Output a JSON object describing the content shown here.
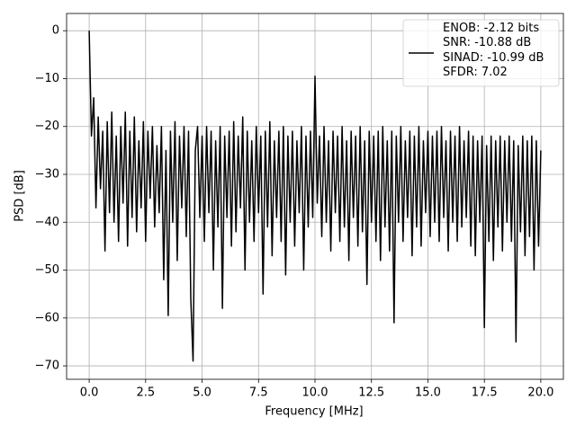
{
  "chart_data": {
    "type": "line",
    "xlabel": "Frequency [MHz]",
    "ylabel": "PSD [dB]",
    "xlim": [
      -1.0,
      21.0
    ],
    "ylim": [
      -72.8,
      3.6
    ],
    "xticks": [
      {
        "value": 0,
        "label": "0.0"
      },
      2.5,
      {
        "value": 5,
        "label": "5.0"
      },
      7.5,
      {
        "value": 10,
        "label": "10.0"
      },
      12.5,
      {
        "value": 15,
        "label": "15.0"
      },
      17.5,
      {
        "value": 20,
        "label": "20.0"
      }
    ],
    "yticks": [
      0,
      {
        "value": -10,
        "label": "−10"
      },
      {
        "value": -20,
        "label": "−20"
      },
      {
        "value": -30,
        "label": "−30"
      },
      {
        "value": -40,
        "label": "−40"
      },
      {
        "value": -50,
        "label": "−50"
      },
      {
        "value": -60,
        "label": "−60"
      },
      {
        "value": -70,
        "label": "−70"
      }
    ],
    "grid": true,
    "legend": "upper right",
    "x": [
      0,
      0.1,
      0.2,
      0.3,
      0.4,
      0.5,
      0.6,
      0.7,
      0.8,
      0.9,
      1,
      1.1,
      1.2,
      1.3,
      1.4,
      1.5,
      1.6,
      1.7,
      1.8,
      1.9,
      2,
      2.1,
      2.2,
      2.3,
      2.4,
      2.5,
      2.6,
      2.7,
      2.8,
      2.9,
      3,
      3.1,
      3.2,
      3.3,
      3.4,
      3.5,
      3.6,
      3.7,
      3.8,
      3.9,
      4,
      4.1,
      4.2,
      4.3,
      4.4,
      4.5,
      4.6,
      4.7,
      4.8,
      4.9,
      5,
      5.1,
      5.2,
      5.3,
      5.4,
      5.5,
      5.6,
      5.7,
      5.8,
      5.9,
      6,
      6.1,
      6.2,
      6.3,
      6.4,
      6.5,
      6.6,
      6.7,
      6.8,
      6.9,
      7,
      7.1,
      7.2,
      7.3,
      7.4,
      7.5,
      7.6,
      7.7,
      7.8,
      7.9,
      8,
      8.1,
      8.2,
      8.3,
      8.4,
      8.5,
      8.6,
      8.7,
      8.8,
      8.9,
      9,
      9.1,
      9.2,
      9.3,
      9.4,
      9.5,
      9.6,
      9.7,
      9.8,
      9.9,
      10,
      10.1,
      10.2,
      10.3,
      10.4,
      10.5,
      10.6,
      10.7,
      10.8,
      10.9,
      11,
      11.1,
      11.2,
      11.3,
      11.4,
      11.5,
      11.6,
      11.7,
      11.8,
      11.9,
      12,
      12.1,
      12.2,
      12.3,
      12.4,
      12.5,
      12.6,
      12.7,
      12.8,
      12.9,
      13,
      13.1,
      13.2,
      13.3,
      13.4,
      13.5,
      13.6,
      13.7,
      13.8,
      13.9,
      14,
      14.1,
      14.2,
      14.3,
      14.4,
      14.5,
      14.6,
      14.7,
      14.8,
      14.9,
      15,
      15.1,
      15.2,
      15.3,
      15.4,
      15.5,
      15.6,
      15.7,
      15.8,
      15.9,
      16,
      16.1,
      16.2,
      16.3,
      16.4,
      16.5,
      16.6,
      16.7,
      16.8,
      16.9,
      17,
      17.1,
      17.2,
      17.3,
      17.4,
      17.5,
      17.6,
      17.7,
      17.8,
      17.9,
      18,
      18.1,
      18.2,
      18.3,
      18.4,
      18.5,
      18.6,
      18.7,
      18.8,
      18.9,
      19,
      19.1,
      19.2,
      19.3,
      19.4,
      19.5,
      19.6,
      19.7,
      19.8,
      19.9,
      20
    ],
    "series": [
      {
        "name": "ENOB: -2.12 bits\nSNR: -10.88 dB\nSINAD: -10.99 dB\nSFDR: 7.02",
        "color": "#000000",
        "values": [
          0,
          -22,
          -14,
          -37,
          -18,
          -33,
          -21,
          -46,
          -19,
          -38,
          -17,
          -40,
          -22,
          -44,
          -20,
          -36,
          -17,
          -45,
          -21,
          -39,
          -18,
          -42,
          -23,
          -37,
          -19,
          -44,
          -21,
          -35,
          -20,
          -41,
          -24,
          -38,
          -20,
          -52,
          -25,
          -59.5,
          -21,
          -40,
          -19,
          -48,
          -22,
          -37,
          -20,
          -43,
          -21,
          -56,
          -69,
          -25,
          -20,
          -39,
          -22,
          -44,
          -20,
          -38,
          -21,
          -50,
          -23,
          -41,
          -20,
          -58,
          -22,
          -39,
          -21,
          -45,
          -19,
          -42,
          -22,
          -37,
          -18,
          -50,
          -21,
          -40,
          -23,
          -44,
          -20,
          -38,
          -22,
          -55,
          -21,
          -41,
          -19,
          -47,
          -23,
          -39,
          -21,
          -44,
          -20,
          -51,
          -22,
          -40,
          -21,
          -45,
          -23,
          -38,
          -20,
          -50,
          -22,
          -41,
          -21,
          -39,
          -9.5,
          -36,
          -22,
          -43,
          -20,
          -40,
          -23,
          -46,
          -21,
          -38,
          -22,
          -44,
          -20,
          -41,
          -23,
          -48,
          -21,
          -39,
          -22,
          -45,
          -20,
          -42,
          -23,
          -53,
          -21,
          -40,
          -22,
          -44,
          -21,
          -48,
          -20,
          -41,
          -23,
          -46,
          -21,
          -61,
          -22,
          -40,
          -20,
          -44,
          -23,
          -39,
          -21,
          -47,
          -22,
          -41,
          -20,
          -45,
          -23,
          -38,
          -21,
          -43,
          -22,
          -40,
          -21,
          -44,
          -20,
          -39,
          -23,
          -46,
          -21,
          -40,
          -22,
          -44,
          -20,
          -41,
          -23,
          -39,
          -21,
          -45,
          -22,
          -47,
          -23,
          -40,
          -22,
          -62,
          -24,
          -44,
          -22,
          -48,
          -23,
          -41,
          -22,
          -46,
          -23,
          -40,
          -22,
          -44,
          -23,
          -65,
          -24,
          -42,
          -22,
          -47,
          -23,
          -43,
          -22,
          -50,
          -23,
          -45,
          -25
        ]
      }
    ]
  }
}
